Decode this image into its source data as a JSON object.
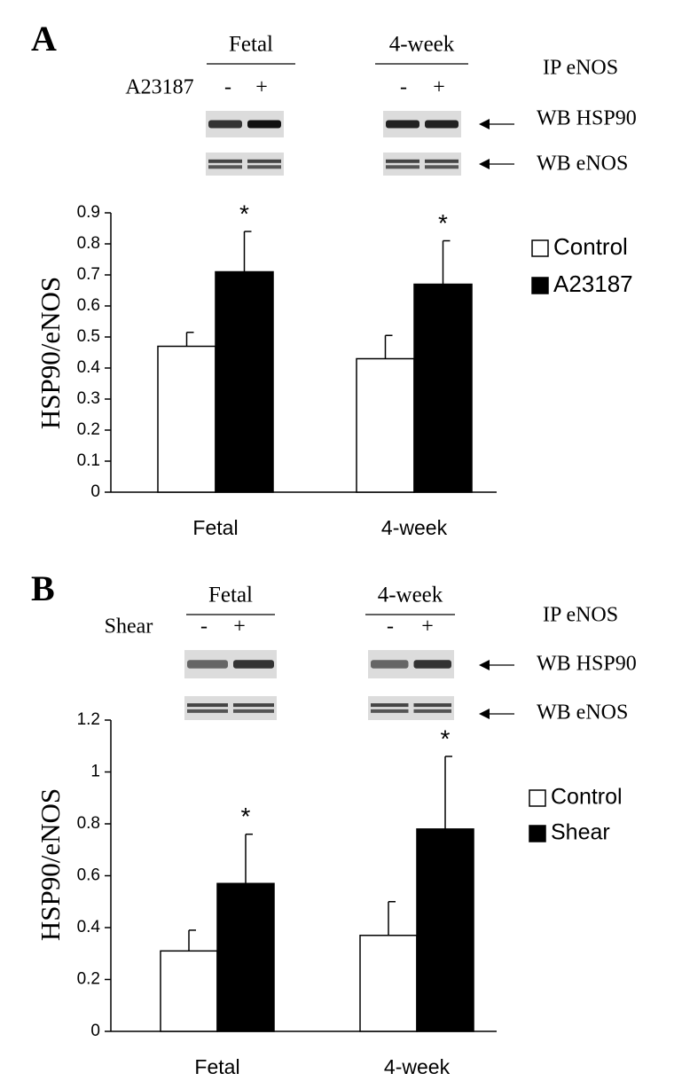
{
  "chart_data": [
    {
      "type": "bar",
      "panel_label": "A",
      "ylabel": "HSP90/eNOS",
      "categories": [
        "Fetal",
        "4-week"
      ],
      "series": [
        {
          "name": "Control",
          "color": "#ffffff",
          "values": [
            0.47,
            0.43
          ],
          "errors": [
            0.045,
            0.075
          ]
        },
        {
          "name": "A23187",
          "color": "#000000",
          "values": [
            0.71,
            0.67
          ],
          "errors": [
            0.13,
            0.14
          ],
          "significance": [
            "*",
            "*"
          ]
        }
      ],
      "ylim": [
        0,
        0.9
      ],
      "yticks": [
        0,
        0.1,
        0.2,
        0.3,
        0.4,
        0.5,
        0.6,
        0.7,
        0.8,
        0.9
      ],
      "blot": {
        "groups": [
          "Fetal",
          "4-week"
        ],
        "treatment": "A23187",
        "lanes": [
          "-",
          "+",
          "-",
          "+"
        ],
        "labels": [
          "IP eNOS",
          "WB HSP90",
          "WB eNOS"
        ]
      }
    },
    {
      "type": "bar",
      "panel_label": "B",
      "ylabel": "HSP90/eNOS",
      "categories": [
        "Fetal",
        "4-week"
      ],
      "series": [
        {
          "name": "Control",
          "color": "#ffffff",
          "values": [
            0.31,
            0.37
          ],
          "errors": [
            0.08,
            0.13
          ]
        },
        {
          "name": "Shear",
          "color": "#000000",
          "values": [
            0.57,
            0.78
          ],
          "errors": [
            0.19,
            0.28
          ],
          "significance": [
            "*",
            "*"
          ]
        }
      ],
      "ylim": [
        0,
        1.2
      ],
      "yticks": [
        0,
        0.2,
        0.4,
        0.6,
        0.8,
        1,
        1.2
      ],
      "blot": {
        "groups": [
          "Fetal",
          "4-week"
        ],
        "treatment": "Shear",
        "lanes": [
          "-",
          "+",
          "-",
          "+"
        ],
        "labels": [
          "IP eNOS",
          "WB HSP90",
          "WB eNOS"
        ]
      }
    }
  ]
}
